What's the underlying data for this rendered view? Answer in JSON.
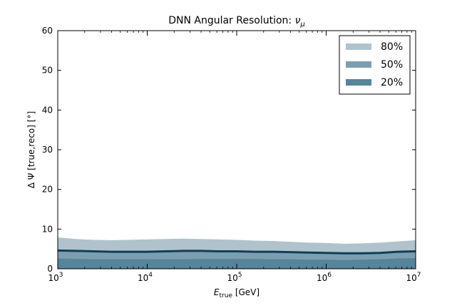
{
  "chart_data": {
    "type": "area",
    "title": "DNN Angular Resolution: ",
    "title_symbol": "ν",
    "title_symbol_sub": "μ",
    "xlabel": "E",
    "xlabel_sub": "true",
    "xlabel_unit": " [GeV]",
    "ylabel": "Δ Ψ [true,reco] [°]",
    "xscale": "log",
    "xlim": [
      1000,
      10000000
    ],
    "ylim": [
      0,
      60
    ],
    "xtick_labels": [
      {
        "base": "10",
        "exp": "3",
        "value": 1000
      },
      {
        "base": "10",
        "exp": "4",
        "value": 10000
      },
      {
        "base": "10",
        "exp": "5",
        "value": 100000
      },
      {
        "base": "10",
        "exp": "6",
        "value": 1000000
      },
      {
        "base": "10",
        "exp": "7",
        "value": 10000000
      }
    ],
    "ytick_labels": [
      "0",
      "10",
      "20",
      "30",
      "40",
      "50",
      "60"
    ],
    "yticks": [
      0,
      10,
      20,
      30,
      40,
      50,
      60
    ],
    "x": [
      1000,
      1585,
      2512,
      3981,
      6310,
      10000,
      15849,
      25119,
      39811,
      63096,
      100000,
      158489,
      251189,
      398107,
      630957,
      1000000,
      1584893,
      2511886,
      3981072,
      6309573,
      10000000
    ],
    "series": [
      {
        "name": "80%",
        "color": "#b0c3cc",
        "lower": [
          0.0,
          0.0,
          0.0,
          0.0,
          0.0,
          0.0,
          0.0,
          0.0,
          0.0,
          0.0,
          0.0,
          0.0,
          0.0,
          0.0,
          0.0,
          0.0,
          0.0,
          0.0,
          0.0,
          0.0,
          0.0
        ],
        "upper": [
          7.9,
          7.5,
          7.3,
          7.2,
          7.3,
          7.4,
          7.5,
          7.6,
          7.5,
          7.4,
          7.3,
          7.1,
          7.0,
          6.8,
          6.6,
          6.5,
          6.3,
          6.4,
          6.6,
          6.9,
          7.2
        ]
      },
      {
        "name": "50%",
        "color": "#7b9fb0",
        "lower": [
          0.0,
          0.0,
          0.0,
          0.0,
          0.0,
          0.0,
          0.0,
          0.0,
          0.0,
          0.0,
          0.0,
          0.0,
          0.0,
          0.0,
          0.0,
          0.0,
          0.0,
          0.0,
          0.0,
          0.0,
          0.0
        ],
        "upper": [
          4.6,
          4.5,
          4.4,
          4.3,
          4.3,
          4.3,
          4.4,
          4.5,
          4.5,
          4.4,
          4.4,
          4.3,
          4.3,
          4.2,
          4.1,
          4.0,
          3.9,
          3.9,
          4.0,
          4.3,
          4.4
        ]
      },
      {
        "name": "20%",
        "color": "#55849b",
        "lower": [
          0.0,
          0.0,
          0.0,
          0.0,
          0.0,
          0.0,
          0.0,
          0.0,
          0.0,
          0.0,
          0.0,
          0.0,
          0.0,
          0.0,
          0.0,
          0.0,
          0.0,
          0.0,
          0.0,
          0.0,
          0.0
        ],
        "upper": [
          2.6,
          2.5,
          2.4,
          2.4,
          2.4,
          2.4,
          2.4,
          2.4,
          2.5,
          2.5,
          2.5,
          2.5,
          2.4,
          2.4,
          2.3,
          2.3,
          2.2,
          2.3,
          2.4,
          2.6,
          2.7
        ]
      }
    ],
    "median": {
      "color": "#0f3f57",
      "values": [
        4.6,
        4.5,
        4.4,
        4.3,
        4.3,
        4.3,
        4.4,
        4.5,
        4.5,
        4.4,
        4.4,
        4.3,
        4.3,
        4.2,
        4.1,
        4.0,
        3.9,
        3.9,
        4.0,
        4.3,
        4.4
      ]
    },
    "legend": {
      "position": "top-right",
      "entries": [
        "80%",
        "50%",
        "20%"
      ]
    },
    "grid": false
  }
}
